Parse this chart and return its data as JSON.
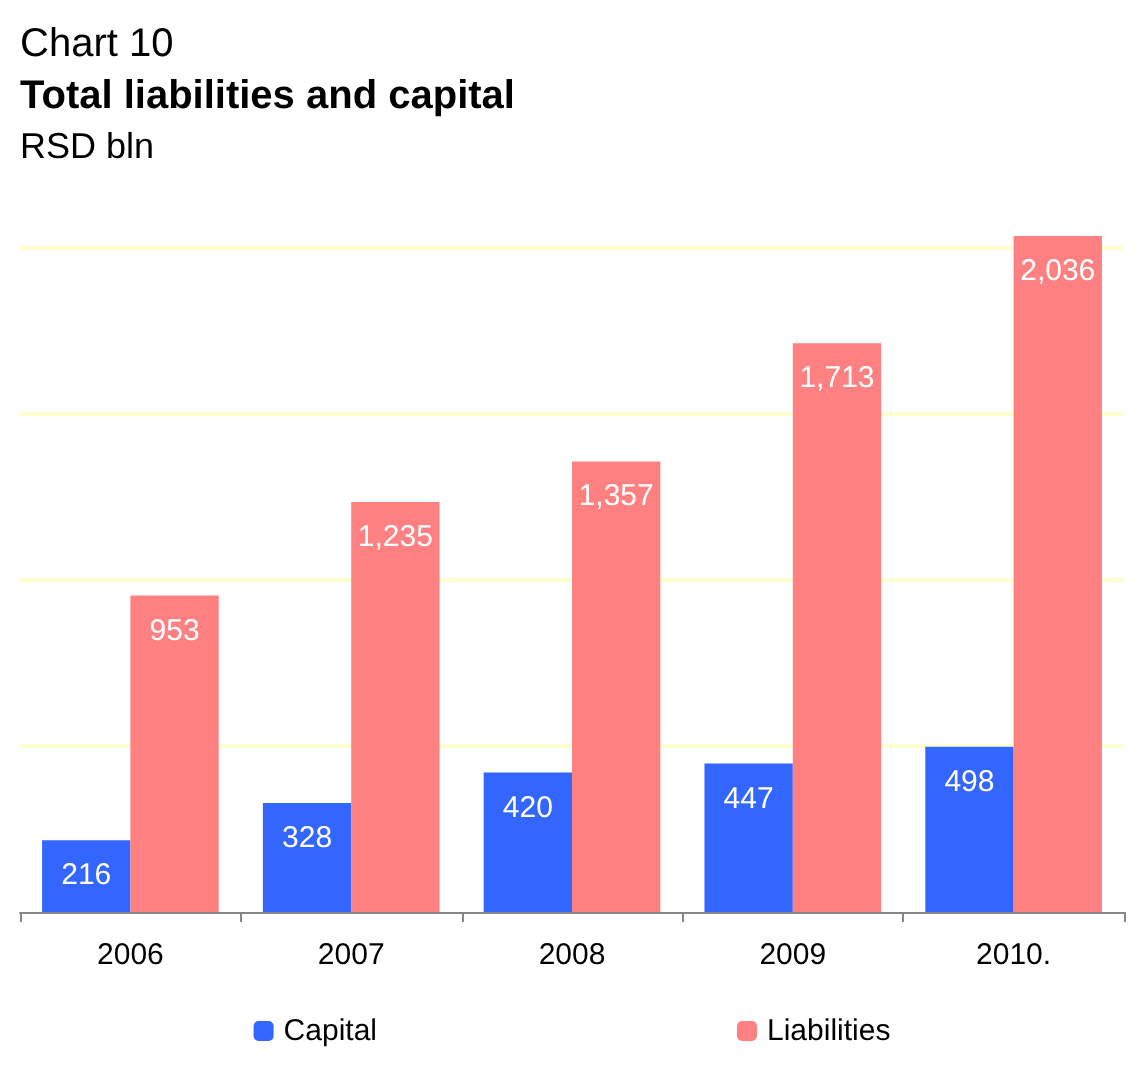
{
  "chart_data": {
    "type": "bar",
    "title": "Total liabilities and capital",
    "subtitle": "RSD bln",
    "annotations": [
      "Chart 10"
    ],
    "categories": [
      "2006",
      "2007",
      "2008",
      "2009",
      "2010."
    ],
    "series": [
      {
        "name": "Capital",
        "color": "#3366ff",
        "values": [
          216,
          328,
          420,
          447,
          498
        ],
        "value_labels": [
          "216",
          "328",
          "420",
          "447",
          "498"
        ]
      },
      {
        "name": "Liabilities",
        "color": "#ff8080",
        "values": [
          953,
          1235,
          1357,
          1713,
          2036
        ],
        "value_labels": [
          "953",
          "1,235",
          "1,357",
          "1,713",
          "2,036"
        ]
      }
    ],
    "ref_lines": [
      {
        "axis": "y",
        "value": 500,
        "color": "#ffffd0"
      },
      {
        "axis": "y",
        "value": 1000,
        "color": "#ffffd0"
      },
      {
        "axis": "y",
        "value": 1500,
        "color": "#ffffd0"
      },
      {
        "axis": "y",
        "value": 2000,
        "color": "#ffffd0"
      }
    ],
    "tick_labels": "x",
    "legend": "bottom"
  }
}
